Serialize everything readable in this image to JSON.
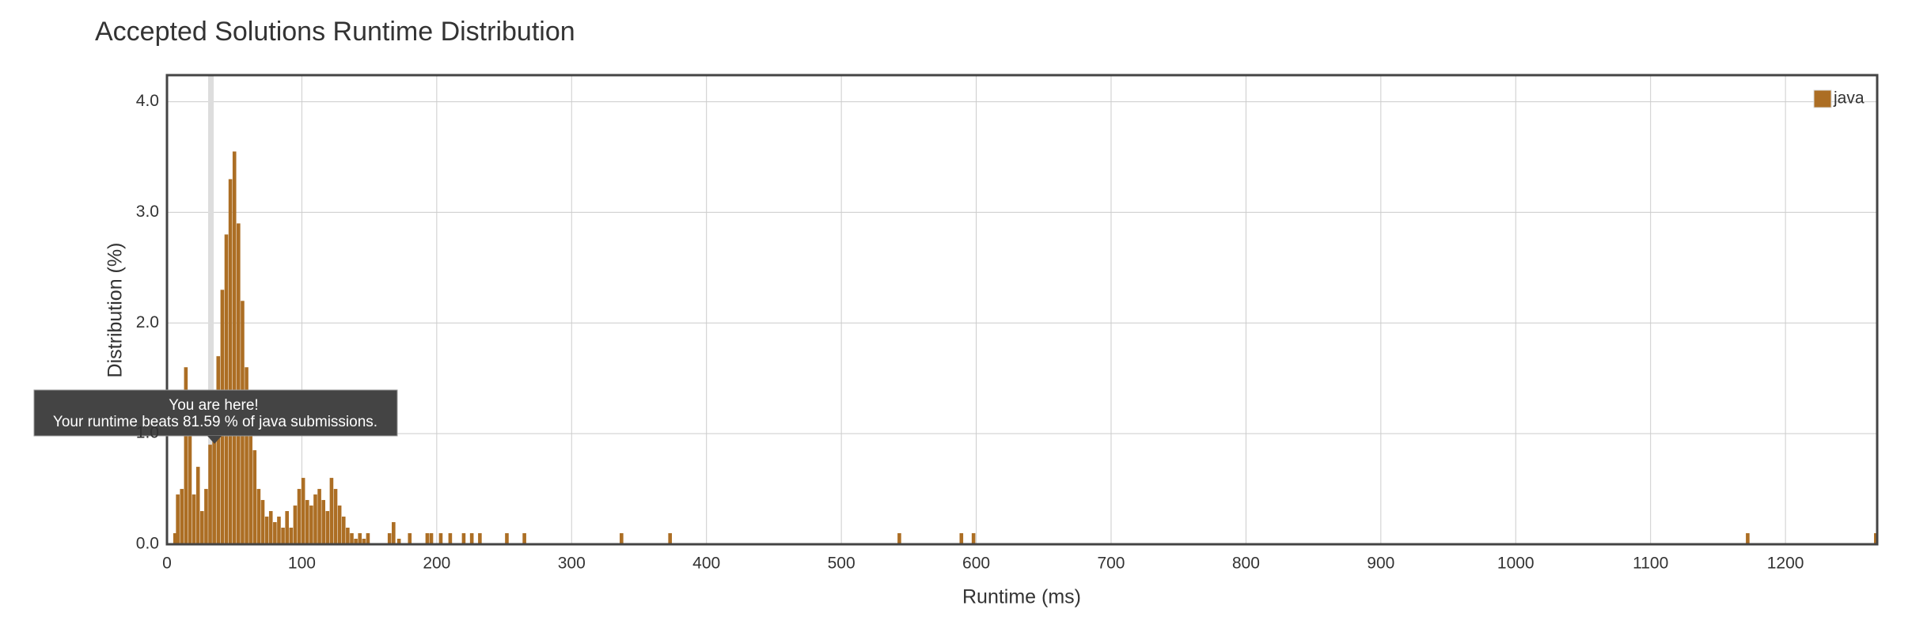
{
  "chart_data": {
    "type": "bar",
    "title": "Accepted Solutions Runtime Distribution",
    "xlabel": "Runtime (ms)",
    "ylabel": "Distribution (%)",
    "legend": "top-right",
    "grid": true,
    "series": [
      {
        "name": "java",
        "color": "#ac6e24",
        "x": [
          6,
          8,
          11,
          14,
          17,
          20,
          23,
          26,
          29,
          32,
          35,
          38,
          41,
          44,
          47,
          50,
          53,
          56,
          59,
          62,
          65,
          68,
          71,
          74,
          77,
          80,
          83,
          86,
          89,
          92,
          95,
          98,
          101,
          104,
          107,
          110,
          113,
          116,
          119,
          122,
          125,
          128,
          131,
          134,
          137,
          140,
          143,
          146,
          149,
          165,
          168,
          172,
          180,
          193,
          196,
          203,
          210,
          220,
          226,
          232,
          252,
          265,
          337,
          373,
          543,
          589,
          598,
          1172,
          1267
        ],
        "values": [
          0.1,
          0.45,
          0.5,
          1.6,
          1.0,
          0.45,
          0.7,
          0.3,
          0.5,
          0.9,
          1.3,
          1.7,
          2.3,
          2.8,
          3.3,
          3.55,
          2.9,
          2.2,
          1.6,
          1.0,
          0.85,
          0.5,
          0.4,
          0.25,
          0.3,
          0.2,
          0.25,
          0.15,
          0.3,
          0.15,
          0.35,
          0.5,
          0.6,
          0.4,
          0.35,
          0.45,
          0.5,
          0.4,
          0.3,
          0.6,
          0.5,
          0.35,
          0.25,
          0.15,
          0.1,
          0.05,
          0.1,
          0.05,
          0.1,
          0.1,
          0.2,
          0.05,
          0.1,
          0.1,
          0.1,
          0.1,
          0.1,
          0.1,
          0.1,
          0.1,
          0.1,
          0.1,
          0.1,
          0.1,
          0.1,
          0.1,
          0.1,
          0.1,
          0.1
        ]
      }
    ],
    "xlim": [
      0,
      1268
    ],
    "xticks": [
      0,
      100,
      200,
      300,
      400,
      500,
      600,
      700,
      800,
      900,
      1000,
      1100,
      1200
    ],
    "ylim": [
      0,
      4.24
    ],
    "yticks": [
      {
        "value": 0,
        "label": "0.0"
      },
      {
        "value": 1,
        "label": "1.0"
      },
      {
        "value": 2,
        "label": "2.0"
      },
      {
        "value": 3,
        "label": "3.0"
      },
      {
        "value": 4,
        "label": "4.0"
      }
    ],
    "annotations": [
      "You are here!",
      "Your runtime beats 81.59 % of java submissions."
    ]
  }
}
